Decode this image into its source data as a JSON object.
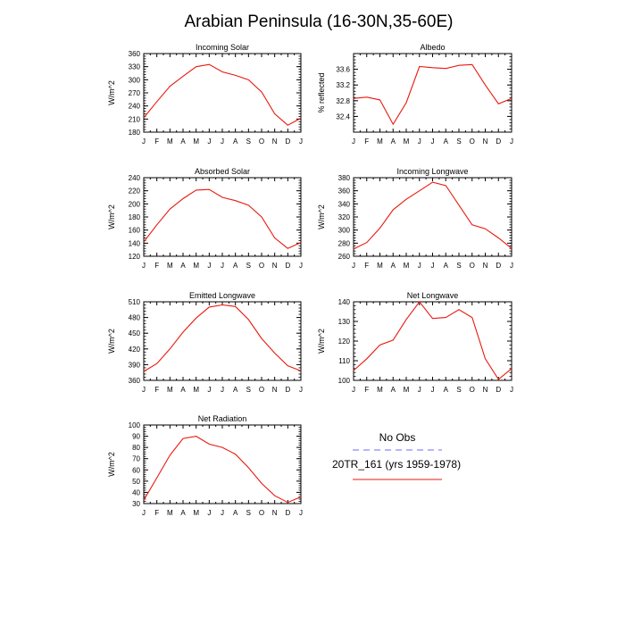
{
  "title": "Arabian Peninsula (16-30N,35-60E)",
  "month_labels": [
    "J",
    "F",
    "M",
    "A",
    "M",
    "J",
    "J",
    "A",
    "S",
    "O",
    "N",
    "D",
    "J"
  ],
  "line_color": "#e8190f",
  "obs_color": "#6b6bff",
  "legend": {
    "obs_label": "No Obs",
    "model_label": "20TR_161 (yrs 1959-1978)"
  },
  "chart_data": [
    {
      "type": "line",
      "title": "Incoming Solar",
      "ylabel": "W/m^2",
      "categories": [
        "J",
        "F",
        "M",
        "A",
        "M",
        "J",
        "J",
        "A",
        "S",
        "O",
        "N",
        "D",
        "J"
      ],
      "ylim": [
        180,
        360
      ],
      "yticks": [
        180,
        210,
        240,
        270,
        300,
        330,
        360
      ],
      "series": [
        {
          "name": "20TR_161 (yrs 1959-1978)",
          "values": [
            213,
            250,
            285,
            308,
            330,
            335,
            318,
            310,
            300,
            272,
            222,
            196,
            212
          ]
        }
      ]
    },
    {
      "type": "line",
      "title": "Albedo",
      "ylabel": "% reflected",
      "categories": [
        "J",
        "F",
        "M",
        "A",
        "M",
        "J",
        "J",
        "A",
        "S",
        "O",
        "N",
        "D",
        "J"
      ],
      "ylim": [
        32.0,
        34.0
      ],
      "yticks": [
        32.4,
        32.8,
        33.2,
        33.6
      ],
      "series": [
        {
          "name": "20TR_161 (yrs 1959-1978)",
          "values": [
            32.86,
            32.89,
            32.82,
            32.2,
            32.75,
            33.67,
            33.64,
            33.62,
            33.7,
            33.72,
            33.2,
            32.72,
            32.86
          ]
        }
      ]
    },
    {
      "type": "line",
      "title": "Absorbed Solar",
      "ylabel": "W/m^2",
      "categories": [
        "J",
        "F",
        "M",
        "A",
        "M",
        "J",
        "J",
        "A",
        "S",
        "O",
        "N",
        "D",
        "J"
      ],
      "ylim": [
        120,
        240
      ],
      "yticks": [
        120,
        140,
        160,
        180,
        200,
        220,
        240
      ],
      "series": [
        {
          "name": "20TR_161 (yrs 1959-1978)",
          "values": [
            142,
            168,
            192,
            208,
            221,
            222,
            210,
            205,
            198,
            180,
            148,
            132,
            141
          ]
        }
      ]
    },
    {
      "type": "line",
      "title": "Incoming Longwave",
      "ylabel": "W/m^2",
      "categories": [
        "J",
        "F",
        "M",
        "A",
        "M",
        "J",
        "J",
        "A",
        "S",
        "O",
        "N",
        "D",
        "J"
      ],
      "ylim": [
        260,
        380
      ],
      "yticks": [
        260,
        280,
        300,
        320,
        340,
        360,
        380
      ],
      "series": [
        {
          "name": "20TR_161 (yrs 1959-1978)",
          "values": [
            271,
            281,
            303,
            331,
            347,
            360,
            373,
            368,
            338,
            308,
            302,
            288,
            272
          ]
        }
      ]
    },
    {
      "type": "line",
      "title": "Emitted Longwave",
      "ylabel": "W/m^2",
      "categories": [
        "J",
        "F",
        "M",
        "A",
        "M",
        "J",
        "J",
        "A",
        "S",
        "O",
        "N",
        "D",
        "J"
      ],
      "ylim": [
        360,
        510
      ],
      "yticks": [
        360,
        390,
        420,
        450,
        480,
        510
      ],
      "series": [
        {
          "name": "20TR_161 (yrs 1959-1978)",
          "values": [
            377,
            392,
            420,
            452,
            479,
            500,
            504,
            501,
            476,
            440,
            412,
            388,
            378
          ]
        }
      ]
    },
    {
      "type": "line",
      "title": "Net Longwave",
      "ylabel": "W/m^2",
      "categories": [
        "J",
        "F",
        "M",
        "A",
        "M",
        "J",
        "J",
        "A",
        "S",
        "O",
        "N",
        "D",
        "J"
      ],
      "ylim": [
        100,
        140
      ],
      "yticks": [
        100,
        110,
        120,
        130,
        140
      ],
      "series": [
        {
          "name": "20TR_161 (yrs 1959-1978)",
          "values": [
            105,
            111,
            118,
            120.5,
            131,
            140,
            131.5,
            132,
            136,
            132,
            111,
            100.5,
            106
          ]
        }
      ]
    },
    {
      "type": "line",
      "title": "Net Radiation",
      "ylabel": "W/m^2",
      "categories": [
        "J",
        "F",
        "M",
        "A",
        "M",
        "J",
        "J",
        "A",
        "S",
        "O",
        "N",
        "D",
        "J"
      ],
      "ylim": [
        30,
        100
      ],
      "yticks": [
        30,
        40,
        50,
        60,
        70,
        80,
        90,
        100
      ],
      "series": [
        {
          "name": "20TR_161 (yrs 1959-1978)",
          "values": [
            33,
            53,
            73,
            88,
            90,
            83,
            80,
            74,
            62,
            48,
            37,
            31,
            36
          ]
        }
      ]
    }
  ]
}
